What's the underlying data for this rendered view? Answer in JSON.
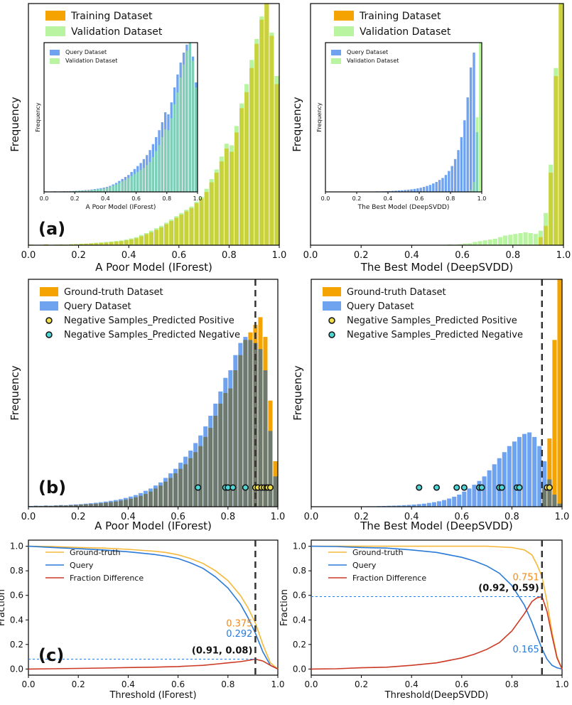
{
  "colors": {
    "training": "#f5a300",
    "validation": "#b9f5a0",
    "overlap_top": "#c8d23c",
    "query": "#6fa3f0",
    "ground_truth": "#f5a300",
    "overlap_bottom": "#6f7a6f",
    "inset_overlap": "#7ecfb4",
    "fraction_query": "#2a7ad8",
    "fraction_gt": "#f6b83a",
    "fraction_diff": "#cc3a25",
    "dashed": "#333333",
    "marker_pos": "#f0e04a",
    "marker_neg": "#4fd6d6"
  },
  "panel_labels": {
    "a": "(a)",
    "b": "(b)",
    "c": "(c)"
  },
  "chart_data": [
    {
      "id": "a-left",
      "type": "bar",
      "xlabel": "A Poor Model (IForest)",
      "ylabel": "Frequency",
      "xlim": [
        0,
        1
      ],
      "xticks": [
        "0.0",
        "0.2",
        "0.4",
        "0.6",
        "0.8",
        "1.0"
      ],
      "legend": {
        "position": "top-left",
        "entries": [
          "Training Dataset",
          "Validation Dataset"
        ]
      },
      "series": [
        {
          "name": "Training Dataset",
          "values": [
            0.3,
            0,
            0.2,
            0.5,
            0.2,
            0.3,
            0.4,
            0.3,
            0.5,
            0.6,
            0.7,
            0.9,
            1.1,
            1.2,
            1.4,
            1.6,
            1.9,
            2.2,
            2.5,
            3,
            3.6,
            4.3,
            5.5,
            6.8,
            8,
            9.5,
            11,
            13,
            15,
            17,
            19,
            21,
            23,
            26,
            29,
            33,
            39,
            45,
            52,
            60,
            58,
            70,
            85,
            95,
            110,
            125,
            140,
            150,
            130,
            100
          ]
        },
        {
          "name": "Validation Dataset",
          "values": [
            0.4,
            0.2,
            0.3,
            0.4,
            0.3,
            0.4,
            0.5,
            0.4,
            0.6,
            0.7,
            0.9,
            1,
            1.2,
            1.5,
            1.7,
            2,
            2.3,
            2.6,
            3,
            3.5,
            4.2,
            5,
            6.3,
            7.5,
            9,
            10.5,
            12,
            14,
            16,
            18,
            20,
            22,
            24,
            27,
            30,
            35,
            41,
            47,
            55,
            63,
            62,
            74,
            88,
            100,
            115,
            128,
            142,
            150,
            132,
            105
          ]
        }
      ]
    },
    {
      "id": "a-left-inset",
      "type": "bar",
      "xlabel": "A Poor Model (IForest)",
      "ylabel": "Frequency",
      "xlim": [
        0,
        1
      ],
      "xticks": [
        "0.0",
        "0.2",
        "0.4",
        "0.6",
        "0.8",
        "1.0"
      ],
      "legend": {
        "position": "top-left",
        "entries": [
          "Query Dataset",
          "Validation Dataset"
        ]
      },
      "series": [
        {
          "name": "Query Dataset",
          "values": [
            0.5,
            0.3,
            0.4,
            0.6,
            0.4,
            0.5,
            0.7,
            0.6,
            0.8,
            0.9,
            1,
            1.2,
            1.5,
            1.8,
            2,
            2.4,
            2.8,
            3.2,
            3.7,
            4.3,
            5,
            6,
            7.5,
            9,
            11,
            13,
            15,
            17,
            20,
            23,
            26,
            29,
            33,
            37,
            42,
            48,
            55,
            62,
            70,
            80,
            78,
            90,
            105,
            118,
            130,
            140,
            148,
            150,
            136,
            110
          ]
        },
        {
          "name": "Validation Dataset",
          "values": [
            0.4,
            0.2,
            0.3,
            0.4,
            0.3,
            0.4,
            0.5,
            0.4,
            0.6,
            0.7,
            0.9,
            1,
            1.2,
            1.5,
            1.7,
            2,
            2.3,
            2.6,
            3,
            3.5,
            4.2,
            5,
            6.3,
            7.5,
            9,
            10.5,
            12,
            14,
            16,
            18,
            20,
            22,
            24,
            27,
            30,
            35,
            41,
            47,
            55,
            63,
            62,
            74,
            88,
            100,
            115,
            128,
            142,
            150,
            132,
            105
          ]
        }
      ]
    },
    {
      "id": "a-right",
      "type": "bar",
      "xlabel": "The Best Model (DeepSVDD)",
      "ylabel": "Frequency",
      "xlim": [
        0,
        1
      ],
      "xticks": [
        "0.0",
        "0.2",
        "0.4",
        "0.6",
        "0.8",
        "1.0"
      ],
      "legend": {
        "position": "top-left",
        "entries": [
          "Training Dataset",
          "Validation Dataset"
        ]
      },
      "series": [
        {
          "name": "Training Dataset",
          "values": [
            0,
            0,
            0,
            0,
            0,
            0,
            0,
            0,
            0,
            0,
            0,
            0,
            0,
            0,
            0,
            0,
            0,
            0,
            0,
            0,
            0,
            0,
            0,
            0,
            0,
            0,
            0,
            0,
            0,
            0,
            0,
            0,
            0,
            0,
            0,
            0,
            0,
            0,
            0,
            0,
            0,
            0,
            0,
            0,
            0,
            5,
            12,
            45,
            105,
            150
          ]
        },
        {
          "name": "Validation Dataset",
          "values": [
            0,
            0,
            0,
            0,
            0,
            0,
            0,
            0,
            0,
            0,
            0,
            0,
            0,
            0,
            0,
            0,
            0,
            0,
            0,
            0,
            0,
            0,
            0,
            0,
            0,
            0,
            0,
            0.5,
            0.3,
            0.6,
            1,
            1.2,
            2,
            2.5,
            3,
            3.5,
            4,
            5,
            6,
            6.5,
            7,
            7.5,
            8,
            7.5,
            7,
            9,
            20,
            50,
            110,
            152
          ]
        }
      ]
    },
    {
      "id": "a-right-inset",
      "type": "bar",
      "xlabel": "The Best Model (DeepSVDD)",
      "ylabel": "Frequency",
      "xlim": [
        0,
        1
      ],
      "xticks": [
        "0.0",
        "0.2",
        "0.4",
        "0.6",
        "0.8",
        "1.0"
      ],
      "legend": {
        "position": "top-left",
        "entries": [
          "Query Dataset",
          "Validation Dataset"
        ]
      },
      "series": [
        {
          "name": "Query Dataset",
          "values": [
            0,
            0,
            0,
            0,
            0,
            0,
            0,
            0,
            0,
            0,
            0,
            0,
            0,
            0,
            0,
            0,
            0.5,
            0.5,
            0.6,
            0.7,
            0.8,
            1,
            1.2,
            1.4,
            1.6,
            1.9,
            2.2,
            2.6,
            3,
            3.5,
            4.2,
            5,
            6,
            7,
            8.5,
            10,
            12,
            14,
            17,
            21,
            26,
            33,
            42,
            55,
            72,
            95,
            125,
            140,
            60,
            0
          ]
        },
        {
          "name": "Validation Dataset",
          "values": [
            0,
            0,
            0,
            0,
            0,
            0,
            0,
            0,
            0,
            0,
            0,
            0,
            0,
            0,
            0,
            0,
            0,
            0,
            0,
            0,
            0,
            0,
            0,
            0,
            0,
            0,
            0,
            0,
            0,
            0,
            0,
            0,
            0,
            0,
            0,
            0,
            0,
            0,
            0,
            0,
            0,
            0,
            0,
            0,
            0,
            0,
            2,
            10,
            75,
            150
          ]
        }
      ]
    },
    {
      "id": "b-left",
      "type": "bar",
      "xlabel": "A Poor Model (IForest)",
      "ylabel": "Frequency",
      "xlim": [
        0,
        1
      ],
      "xticks": [
        "0.0",
        "0.2",
        "0.4",
        "0.6",
        "0.8",
        "1.0"
      ],
      "threshold": 0.91,
      "legend": {
        "position": "top-left",
        "entries": [
          "Ground-truth Dataset",
          "Query Dataset",
          "Negative Samples_Predicted Positive",
          "Negative Samples_Predicted Negative"
        ]
      },
      "series": [
        {
          "name": "Ground-truth Dataset",
          "values": [
            0.3,
            0.5,
            0.4,
            0.6,
            0.5,
            0.7,
            0.9,
            0.8,
            1,
            1.2,
            1.4,
            1.6,
            1.8,
            2,
            2.3,
            2.7,
            3,
            3.4,
            4,
            4.6,
            5.3,
            6.2,
            7.2,
            8.4,
            10,
            12,
            14,
            16.5,
            19,
            22,
            25,
            28,
            32,
            36,
            40,
            46,
            52,
            60,
            68,
            75,
            78,
            90,
            100,
            110,
            115,
            120,
            125,
            112,
            70,
            30
          ]
        },
        {
          "name": "Query Dataset",
          "values": [
            0.5,
            0.7,
            0.6,
            0.8,
            0.7,
            0.9,
            1.1,
            1,
            1.3,
            1.5,
            1.7,
            2,
            2.3,
            2.6,
            3,
            3.4,
            3.9,
            4.4,
            5,
            5.8,
            6.7,
            7.7,
            9,
            10.5,
            12,
            14,
            16,
            19,
            22,
            25,
            29,
            33,
            37,
            42,
            47,
            53,
            60,
            68,
            76,
            85,
            90,
            100,
            108,
            112,
            110,
            108,
            104,
            90,
            50,
            20
          ]
        }
      ],
      "predicted_positive": [
        0.91,
        0.92,
        0.935,
        0.945,
        0.955,
        0.96,
        0.97
      ],
      "predicted_negative": [
        0.68,
        0.79,
        0.8,
        0.82,
        0.87,
        0.92
      ]
    },
    {
      "id": "b-right",
      "type": "bar",
      "xlabel": "The Best Model (DeepSVDD)",
      "ylabel": "Frequency",
      "xlim": [
        0,
        1
      ],
      "xticks": [
        "0.0",
        "0.2",
        "0.4",
        "0.6",
        "0.8",
        "1.0"
      ],
      "threshold": 0.92,
      "legend": {
        "position": "top-left",
        "entries": [
          "Ground-truth Dataset",
          "Query Dataset",
          "Negative Samples_Predicted Positive",
          "Negative Samples_Predicted Negative"
        ]
      },
      "series": [
        {
          "name": "Ground-truth Dataset",
          "values": [
            0,
            0,
            0,
            0,
            0,
            0,
            0,
            0,
            0,
            0,
            0,
            0,
            0,
            0,
            0,
            0,
            0,
            0,
            0,
            0,
            0,
            0,
            0,
            0,
            0,
            0,
            0,
            0,
            0,
            0,
            0,
            0,
            0,
            0,
            0,
            0,
            0,
            0,
            0,
            0,
            0,
            0,
            0,
            0,
            0,
            0,
            12,
            45,
            110,
            150
          ]
        },
        {
          "name": "Query Dataset",
          "values": [
            0,
            0,
            0,
            0,
            0,
            0,
            0,
            0,
            0,
            0,
            0.2,
            0.3,
            0.3,
            0.4,
            0.5,
            0.6,
            0.7,
            0.8,
            1,
            1.2,
            1.4,
            1.7,
            2,
            2.5,
            3,
            3.6,
            4.4,
            5.4,
            6.6,
            8,
            10,
            12,
            14.5,
            17,
            20,
            24,
            28,
            32,
            36,
            40,
            43,
            46,
            48,
            49,
            46,
            40,
            30,
            18,
            8,
            2
          ]
        }
      ],
      "predicted_positive": [
        0.94,
        0.95
      ],
      "predicted_negative": [
        0.43,
        0.5,
        0.58,
        0.61,
        0.67,
        0.68,
        0.75,
        0.76,
        0.82,
        0.83
      ]
    },
    {
      "id": "c-left",
      "type": "line",
      "xlabel": "Threshold (IForest)",
      "ylabel": "Fraction",
      "xlim": [
        0,
        1
      ],
      "ylim": [
        -0.05,
        1.05
      ],
      "xticks": [
        "0.0",
        "0.2",
        "0.4",
        "0.6",
        "0.8",
        "1.0"
      ],
      "yticks": [
        "0.0",
        "0.2",
        "0.4",
        "0.6",
        "0.8",
        "1.0"
      ],
      "legend": {
        "position": "top-left",
        "entries": [
          "Ground-truth",
          "Query",
          "Fraction Difference"
        ]
      },
      "threshold": 0.91,
      "x": [
        0,
        0.1,
        0.2,
        0.3,
        0.4,
        0.5,
        0.55,
        0.6,
        0.65,
        0.7,
        0.75,
        0.8,
        0.85,
        0.88,
        0.91,
        0.94,
        0.97,
        1.0
      ],
      "series": [
        {
          "name": "Ground-truth",
          "values": [
            1,
            0.998,
            0.99,
            0.985,
            0.975,
            0.96,
            0.95,
            0.93,
            0.9,
            0.86,
            0.8,
            0.72,
            0.6,
            0.5,
            0.375,
            0.2,
            0.05,
            0
          ]
        },
        {
          "name": "Query",
          "values": [
            1,
            0.99,
            0.98,
            0.97,
            0.955,
            0.935,
            0.92,
            0.9,
            0.865,
            0.82,
            0.75,
            0.66,
            0.53,
            0.42,
            0.292,
            0.14,
            0.03,
            0
          ]
        },
        {
          "name": "Fraction Difference",
          "values": [
            0,
            0.002,
            0.005,
            0.008,
            0.012,
            0.015,
            0.018,
            0.02,
            0.025,
            0.03,
            0.04,
            0.05,
            0.06,
            0.07,
            0.08,
            0.065,
            0.03,
            0
          ]
        }
      ],
      "annotations": [
        {
          "text": "0.375",
          "x": 0.91,
          "y": 0.375,
          "color": "orange"
        },
        {
          "text": "0.292",
          "x": 0.91,
          "y": 0.292,
          "color": "blue"
        },
        {
          "text": "(0.91, 0.08)",
          "x": 0.91,
          "y": 0.08,
          "color": "black"
        }
      ]
    },
    {
      "id": "c-right",
      "type": "line",
      "xlabel": "Threshold(DeepSVDD)",
      "ylabel": "Fraction",
      "xlim": [
        0,
        1
      ],
      "ylim": [
        -0.05,
        1.05
      ],
      "xticks": [
        "0.0",
        "0.2",
        "0.4",
        "0.6",
        "0.8",
        "1.0"
      ],
      "yticks": [
        "0.0",
        "0.2",
        "0.4",
        "0.6",
        "0.8",
        "1.0"
      ],
      "legend": {
        "position": "top-left",
        "entries": [
          "Ground-truth",
          "Query",
          "Fraction Difference"
        ]
      },
      "threshold": 0.92,
      "x": [
        0,
        0.1,
        0.2,
        0.3,
        0.4,
        0.5,
        0.6,
        0.65,
        0.7,
        0.75,
        0.8,
        0.85,
        0.88,
        0.9,
        0.92,
        0.94,
        0.96,
        0.98,
        1.0
      ],
      "series": [
        {
          "name": "Ground-truth",
          "values": [
            1,
            1,
            1,
            1,
            1,
            1,
            1,
            1,
            1,
            0.995,
            0.99,
            0.97,
            0.93,
            0.85,
            0.751,
            0.55,
            0.3,
            0.1,
            0
          ]
        },
        {
          "name": "Query",
          "values": [
            1,
            0.998,
            0.99,
            0.985,
            0.97,
            0.95,
            0.91,
            0.88,
            0.84,
            0.78,
            0.68,
            0.52,
            0.38,
            0.27,
            0.165,
            0.08,
            0.03,
            0.01,
            0
          ]
        },
        {
          "name": "Fraction Difference",
          "values": [
            0,
            0.002,
            0.01,
            0.015,
            0.03,
            0.05,
            0.09,
            0.12,
            0.16,
            0.215,
            0.31,
            0.45,
            0.55,
            0.58,
            0.59,
            0.47,
            0.27,
            0.09,
            0
          ]
        }
      ],
      "annotations": [
        {
          "text": "0.751",
          "x": 0.92,
          "y": 0.751,
          "color": "orange"
        },
        {
          "text": "0.165",
          "x": 0.92,
          "y": 0.165,
          "color": "blue"
        },
        {
          "text": "(0.92, 0.59)",
          "x": 0.92,
          "y": 0.59,
          "color": "black"
        }
      ]
    }
  ]
}
